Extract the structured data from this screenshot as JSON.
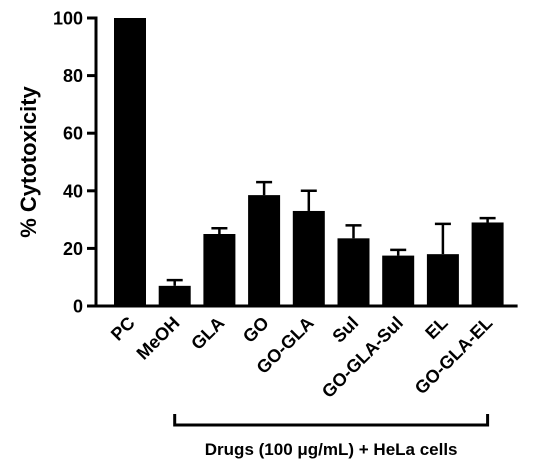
{
  "chart_data": {
    "type": "bar",
    "categories": [
      "PC",
      "MeOH",
      "GLA",
      "GO",
      "GO-GLA",
      "Sul",
      "GO-GLA-Sul",
      "EL",
      "GO-GLA-EL"
    ],
    "values": [
      100,
      7,
      25,
      38.5,
      33,
      23.5,
      17.5,
      18,
      29
    ],
    "errors": [
      0,
      2,
      2,
      4.5,
      7,
      4.5,
      2,
      10.5,
      1.5
    ],
    "ylabel": "% Cytotoxicity",
    "xlabel": "",
    "ylim": [
      0,
      100
    ],
    "yticks": [
      0,
      20,
      40,
      60,
      80,
      100
    ],
    "group_label": "Drugs (100 μg/mL) + HeLa cells",
    "bar_color": "#000000",
    "grid": false
  }
}
